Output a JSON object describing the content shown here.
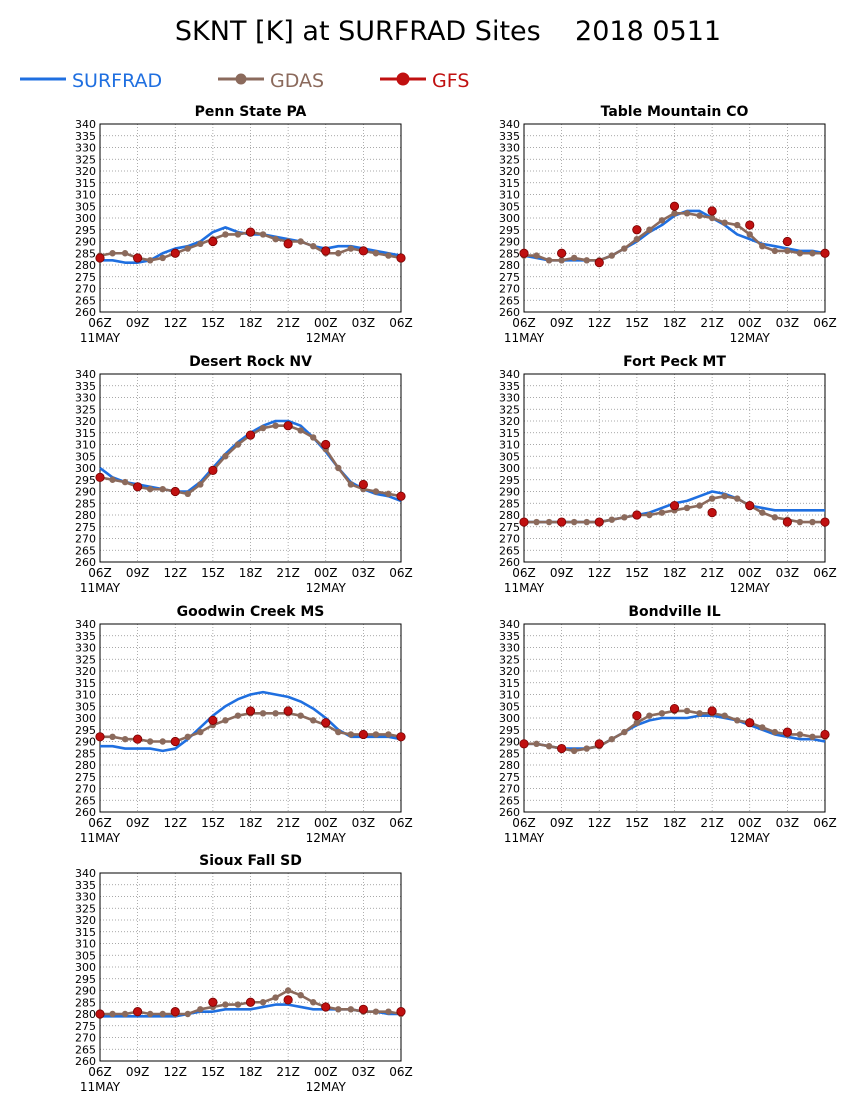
{
  "title": "SKNT [K] at SURFRAD Sites    2018 0511",
  "legend": {
    "position": "top-left",
    "items": [
      {
        "label": "SURFRAD",
        "color": "#1f6fe0",
        "marker": "none"
      },
      {
        "label": "GDAS",
        "color": "#8b6a5c",
        "marker": "circle"
      },
      {
        "label": "GFS",
        "color": "#c01010",
        "marker": "circle-large"
      }
    ]
  },
  "axes": {
    "y_ticks": [
      260,
      265,
      270,
      275,
      280,
      285,
      290,
      295,
      300,
      305,
      310,
      315,
      320,
      325,
      330,
      335,
      340
    ],
    "x_ticks": [
      "06Z",
      "09Z",
      "12Z",
      "15Z",
      "18Z",
      "21Z",
      "00Z",
      "03Z",
      "06Z"
    ],
    "date_labels": [
      {
        "text": "11MAY",
        "tick_index": 0
      },
      {
        "text": "12MAY",
        "tick_index": 6
      }
    ],
    "grid": true
  },
  "chart_data": [
    {
      "type": "line",
      "title": "Penn State PA",
      "ylim": [
        260,
        340
      ],
      "x": [
        0,
        1,
        2,
        3,
        4,
        5,
        6,
        7,
        8,
        9,
        10,
        11,
        12,
        13,
        14,
        15,
        16,
        17,
        18,
        19,
        20,
        21,
        22,
        23,
        24
      ],
      "series": [
        {
          "name": "SURFRAD",
          "values": [
            282,
            282,
            281,
            281,
            282,
            285,
            287,
            288,
            290,
            294,
            296,
            294,
            293,
            293,
            292,
            291,
            290,
            288,
            287,
            288,
            288,
            287,
            286,
            285,
            284
          ]
        },
        {
          "name": "GDAS",
          "values": [
            284,
            285,
            285,
            283,
            282,
            283,
            285,
            287,
            289,
            291,
            293,
            293,
            294,
            293,
            291,
            290,
            290,
            288,
            285,
            285,
            287,
            286,
            285,
            284,
            283
          ]
        },
        {
          "name": "GFS",
          "values": [
            283,
            null,
            null,
            283,
            null,
            null,
            285,
            null,
            null,
            290,
            null,
            null,
            294,
            null,
            null,
            289,
            null,
            null,
            286,
            null,
            null,
            286,
            null,
            null,
            283
          ]
        }
      ]
    },
    {
      "type": "line",
      "title": "Table Mountain CO",
      "ylim": [
        260,
        340
      ],
      "x": [
        0,
        1,
        2,
        3,
        4,
        5,
        6,
        7,
        8,
        9,
        10,
        11,
        12,
        13,
        14,
        15,
        16,
        17,
        18,
        19,
        20,
        21,
        22,
        23,
        24
      ],
      "series": [
        {
          "name": "SURFRAD",
          "values": [
            284,
            283,
            282,
            282,
            282,
            282,
            282,
            284,
            287,
            290,
            294,
            297,
            301,
            303,
            303,
            300,
            297,
            293,
            291,
            289,
            288,
            287,
            286,
            286,
            285
          ]
        },
        {
          "name": "GDAS",
          "values": [
            284,
            284,
            282,
            282,
            283,
            282,
            282,
            284,
            287,
            291,
            295,
            299,
            302,
            302,
            301,
            300,
            298,
            297,
            293,
            288,
            286,
            286,
            285,
            285,
            285
          ]
        },
        {
          "name": "GFS",
          "values": [
            285,
            null,
            null,
            285,
            null,
            null,
            281,
            null,
            null,
            295,
            null,
            null,
            305,
            null,
            null,
            303,
            null,
            null,
            297,
            null,
            null,
            290,
            null,
            null,
            285
          ]
        }
      ]
    },
    {
      "type": "line",
      "title": "Desert Rock NV",
      "ylim": [
        260,
        340
      ],
      "x": [
        0,
        1,
        2,
        3,
        4,
        5,
        6,
        7,
        8,
        9,
        10,
        11,
        12,
        13,
        14,
        15,
        16,
        17,
        18,
        19,
        20,
        21,
        22,
        23,
        24
      ],
      "series": [
        {
          "name": "SURFRAD",
          "values": [
            300,
            296,
            294,
            293,
            292,
            291,
            290,
            290,
            294,
            300,
            306,
            311,
            315,
            318,
            320,
            320,
            318,
            313,
            307,
            300,
            294,
            291,
            289,
            288,
            286
          ]
        },
        {
          "name": "GDAS",
          "values": [
            296,
            295,
            294,
            292,
            291,
            291,
            290,
            289,
            293,
            299,
            305,
            310,
            314,
            317,
            318,
            318,
            316,
            313,
            308,
            300,
            293,
            291,
            290,
            289,
            288
          ]
        },
        {
          "name": "GFS",
          "values": [
            296,
            null,
            null,
            292,
            null,
            null,
            290,
            null,
            null,
            299,
            null,
            null,
            314,
            null,
            null,
            318,
            null,
            null,
            310,
            null,
            null,
            293,
            null,
            null,
            288
          ]
        }
      ]
    },
    {
      "type": "line",
      "title": "Fort Peck MT",
      "ylim": [
        260,
        340
      ],
      "x": [
        0,
        1,
        2,
        3,
        4,
        5,
        6,
        7,
        8,
        9,
        10,
        11,
        12,
        13,
        14,
        15,
        16,
        17,
        18,
        19,
        20,
        21,
        22,
        23,
        24
      ],
      "series": [
        {
          "name": "SURFRAD",
          "values": [
            277,
            277,
            277,
            277,
            277,
            277,
            277,
            278,
            279,
            280,
            281,
            283,
            285,
            286,
            288,
            290,
            289,
            287,
            284,
            283,
            282,
            282,
            282,
            282,
            282
          ]
        },
        {
          "name": "GDAS",
          "values": [
            277,
            277,
            277,
            277,
            277,
            277,
            277,
            278,
            279,
            280,
            280,
            281,
            282,
            283,
            284,
            287,
            288,
            287,
            284,
            281,
            279,
            278,
            277,
            277,
            277
          ]
        },
        {
          "name": "GFS",
          "values": [
            277,
            null,
            null,
            277,
            null,
            null,
            277,
            null,
            null,
            280,
            null,
            null,
            284,
            null,
            null,
            281,
            null,
            null,
            284,
            null,
            null,
            277,
            null,
            null,
            277
          ]
        }
      ]
    },
    {
      "type": "line",
      "title": "Goodwin Creek MS",
      "ylim": [
        260,
        340
      ],
      "x": [
        0,
        1,
        2,
        3,
        4,
        5,
        6,
        7,
        8,
        9,
        10,
        11,
        12,
        13,
        14,
        15,
        16,
        17,
        18,
        19,
        20,
        21,
        22,
        23,
        24
      ],
      "series": [
        {
          "name": "SURFRAD",
          "values": [
            288,
            288,
            287,
            287,
            287,
            286,
            287,
            291,
            296,
            301,
            305,
            308,
            310,
            311,
            310,
            309,
            307,
            304,
            300,
            295,
            292,
            292,
            292,
            292,
            291
          ]
        },
        {
          "name": "GDAS",
          "values": [
            292,
            292,
            291,
            291,
            290,
            290,
            290,
            292,
            294,
            297,
            299,
            301,
            302,
            302,
            302,
            302,
            301,
            299,
            297,
            294,
            293,
            293,
            293,
            293,
            292
          ]
        },
        {
          "name": "GFS",
          "values": [
            292,
            null,
            null,
            291,
            null,
            null,
            290,
            null,
            null,
            299,
            null,
            null,
            303,
            null,
            null,
            303,
            null,
            null,
            298,
            null,
            null,
            293,
            null,
            null,
            292
          ]
        }
      ]
    },
    {
      "type": "line",
      "title": "Bondville IL",
      "ylim": [
        260,
        340
      ],
      "x": [
        0,
        1,
        2,
        3,
        4,
        5,
        6,
        7,
        8,
        9,
        10,
        11,
        12,
        13,
        14,
        15,
        16,
        17,
        18,
        19,
        20,
        21,
        22,
        23,
        24
      ],
      "series": [
        {
          "name": "SURFRAD",
          "values": [
            289,
            289,
            288,
            287,
            287,
            287,
            288,
            291,
            294,
            297,
            299,
            300,
            300,
            300,
            301,
            301,
            300,
            299,
            297,
            295,
            293,
            292,
            291,
            291,
            290
          ]
        },
        {
          "name": "GDAS",
          "values": [
            289,
            289,
            288,
            287,
            286,
            287,
            288,
            291,
            294,
            298,
            301,
            302,
            303,
            303,
            302,
            302,
            301,
            299,
            298,
            296,
            294,
            293,
            293,
            292,
            292
          ]
        },
        {
          "name": "GFS",
          "values": [
            289,
            null,
            null,
            287,
            null,
            null,
            289,
            null,
            null,
            301,
            null,
            null,
            304,
            null,
            null,
            303,
            null,
            null,
            298,
            null,
            null,
            294,
            null,
            null,
            293
          ]
        }
      ]
    },
    {
      "type": "line",
      "title": "Sioux Fall SD",
      "ylim": [
        260,
        340
      ],
      "x": [
        0,
        1,
        2,
        3,
        4,
        5,
        6,
        7,
        8,
        9,
        10,
        11,
        12,
        13,
        14,
        15,
        16,
        17,
        18,
        19,
        20,
        21,
        22,
        23,
        24
      ],
      "series": [
        {
          "name": "SURFRAD",
          "values": [
            279,
            279,
            279,
            279,
            279,
            279,
            279,
            280,
            281,
            281,
            282,
            282,
            282,
            283,
            284,
            284,
            283,
            282,
            282,
            282,
            282,
            281,
            281,
            280,
            280
          ]
        },
        {
          "name": "GDAS",
          "values": [
            280,
            280,
            280,
            281,
            280,
            280,
            280,
            280,
            282,
            283,
            284,
            284,
            285,
            285,
            287,
            290,
            288,
            285,
            283,
            282,
            282,
            281,
            281,
            281,
            280
          ]
        },
        {
          "name": "GFS",
          "values": [
            280,
            null,
            null,
            281,
            null,
            null,
            281,
            null,
            null,
            285,
            null,
            null,
            285,
            null,
            null,
            286,
            null,
            null,
            283,
            null,
            null,
            282,
            null,
            null,
            281
          ]
        }
      ]
    }
  ]
}
